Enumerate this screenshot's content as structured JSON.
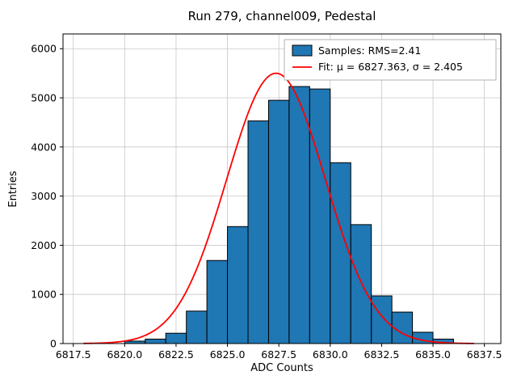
{
  "chart_data": {
    "type": "bar",
    "subtype": "histogram-with-gaussian-fit",
    "title": "Run 279, channel009, Pedestal",
    "xlabel": "ADC Counts",
    "ylabel": "Entries",
    "xlim": [
      6817.0,
      6838.3
    ],
    "ylim": [
      0,
      6300
    ],
    "xticks": [
      6817.5,
      6820.0,
      6822.5,
      6825.0,
      6827.5,
      6830.0,
      6832.5,
      6835.0,
      6837.5
    ],
    "yticks": [
      0,
      1000,
      2000,
      3000,
      4000,
      5000,
      6000
    ],
    "grid": true,
    "bins": {
      "start": 6820,
      "width": 1,
      "counts": [
        50,
        90,
        210,
        660,
        1690,
        2380,
        4530,
        4950,
        5230,
        5180,
        3680,
        2420,
        970,
        640,
        230,
        90
      ]
    },
    "fit": {
      "mu": 6827.363,
      "sigma": 2.405,
      "amplitude": 5500,
      "x_range": [
        6818.0,
        6837.0
      ]
    },
    "colors": {
      "bar_fill": "#1f77b4",
      "bar_edge": "#000000",
      "fit_line": "#ff0000",
      "grid": "#c8c8c8",
      "frame": "#000000"
    },
    "legend": {
      "samples_label": "Samples: RMS=2.41",
      "fit_label": "Fit: μ = 6827.363, σ = 2.405"
    }
  }
}
